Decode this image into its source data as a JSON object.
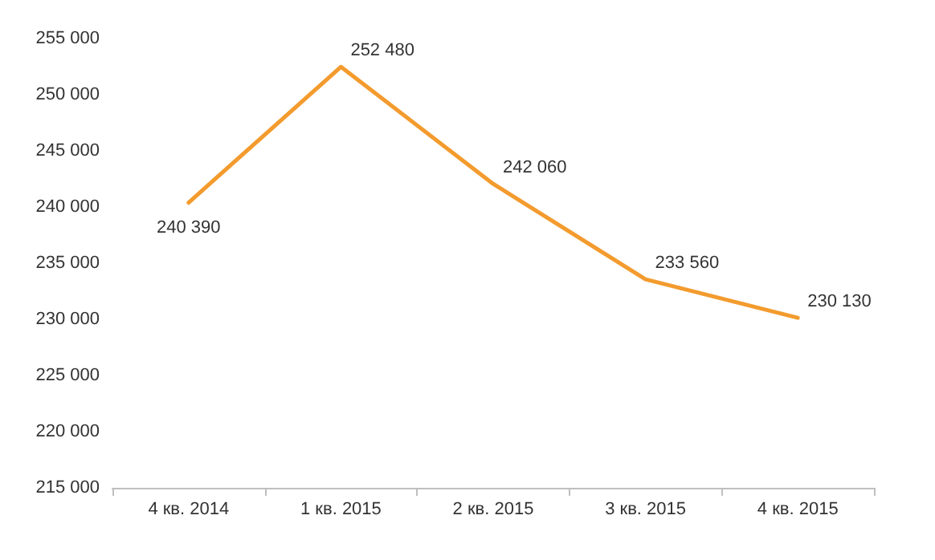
{
  "chart_data": {
    "type": "line",
    "categories": [
      "4 кв. 2014",
      "1 кв. 2015",
      "2 кв. 2015",
      "3 кв. 2015",
      "4 кв. 2015"
    ],
    "series": [
      {
        "color": "#f39b2e",
        "values": [
          240390,
          252480,
          242060,
          233560,
          230130
        ],
        "value_labels": [
          "240 390",
          "252 480",
          "242 060",
          "233 560",
          "230 130"
        ]
      }
    ],
    "ylim": [
      215000,
      255000
    ],
    "yticks": [
      {
        "value": 215000,
        "label": "215 000"
      },
      {
        "value": 220000,
        "label": "220 000"
      },
      {
        "value": 225000,
        "label": "225 000"
      },
      {
        "value": 230000,
        "label": "230 000"
      },
      {
        "value": 235000,
        "label": "235 000"
      },
      {
        "value": 240000,
        "label": "240 000"
      },
      {
        "value": 245000,
        "label": "245 000"
      },
      {
        "value": 250000,
        "label": "250 000"
      },
      {
        "value": 255000,
        "label": "255 000"
      }
    ],
    "grid": false,
    "marker": "none",
    "line_style": "solid"
  }
}
